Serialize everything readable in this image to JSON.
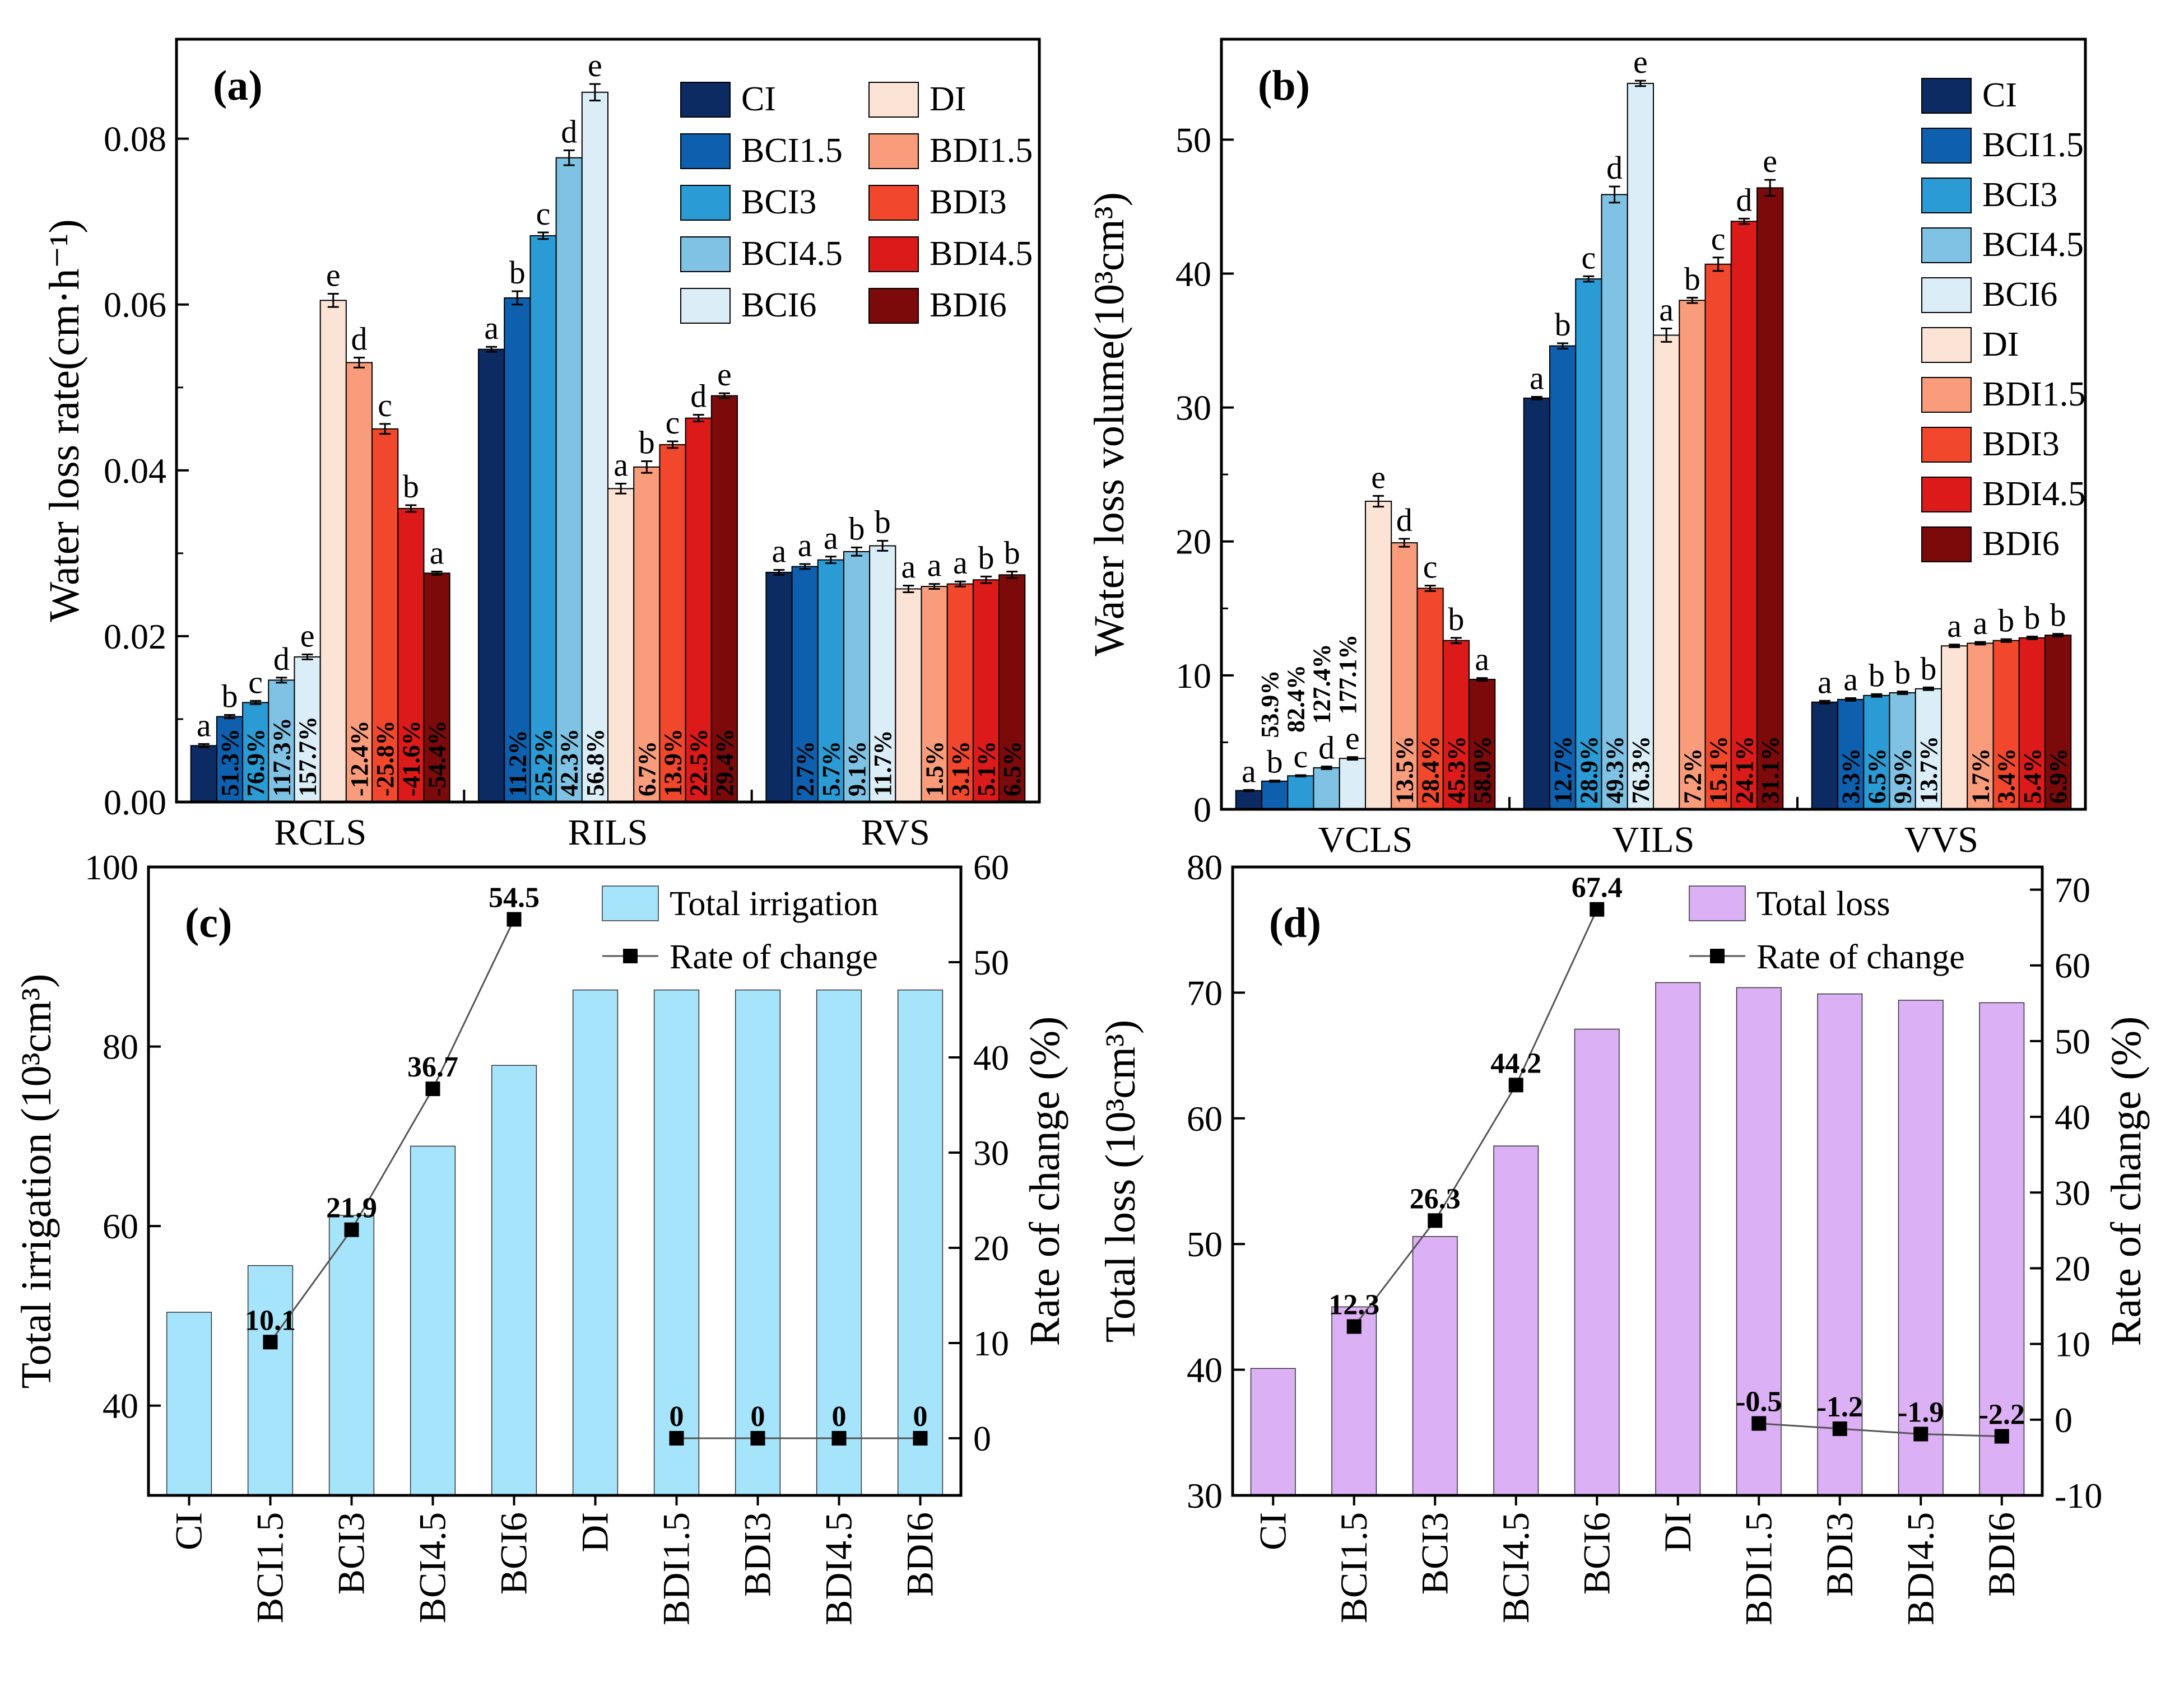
{
  "colors": {
    "CI": "#0d2b63",
    "BCI1.5": "#0e5fad",
    "BCI3": "#2a9bd4",
    "BCI4.5": "#7fc2e3",
    "BCI6": "#dbeef8",
    "DI": "#fbe3d6",
    "BDI1.5": "#f89c7c",
    "BDI3": "#f0472d",
    "BDI4.5": "#dc1a1a",
    "BDI6": "#7c0a0a",
    "irrigation_bar": "#a6e4fb",
    "loss_bar": "#dcb0f5",
    "line": "#555555",
    "marker": "#000000"
  },
  "chart_data": [
    {
      "id": "a",
      "panel_label": "(a)",
      "type": "bar",
      "ylabel": "Water loss rate(cm·h⁻¹)",
      "ylim": [
        0,
        0.092
      ],
      "yticks": [
        "0.00",
        "0.02",
        "0.04",
        "0.06",
        "0.08"
      ],
      "ytick_values": [
        0,
        0.02,
        0.04,
        0.06,
        0.08
      ],
      "treatments": [
        "CI",
        "BCI1.5",
        "BCI3",
        "BCI4.5",
        "BCI6",
        "DI",
        "BDI1.5",
        "BDI3",
        "BDI4.5",
        "BDI6"
      ],
      "legend": {
        "columns": [
          [
            "CI",
            "BCI1.5",
            "BCI3",
            "BCI4.5",
            "BCI6"
          ],
          [
            "DI",
            "BDI1.5",
            "BDI3",
            "BDI4.5",
            "BDI6"
          ]
        ]
      },
      "groups": [
        {
          "name": "RCLS",
          "values": [
            0.0068,
            0.0103,
            0.012,
            0.0147,
            0.0175,
            0.0605,
            0.053,
            0.045,
            0.0354,
            0.0276
          ],
          "errors": [
            0.0002,
            0.0002,
            0.0002,
            0.0003,
            0.0003,
            0.0008,
            0.0006,
            0.0006,
            0.0004,
            0.0002
          ],
          "letters": [
            "a",
            "b",
            "c",
            "d",
            "e",
            "e",
            "d",
            "c",
            "b",
            "a"
          ],
          "pcts": [
            "",
            "51.3%",
            "76.9%",
            "117.3%",
            "157.7%",
            "",
            "-12.4%",
            "-25.8%",
            "-41.6%",
            "-54.4%"
          ]
        },
        {
          "name": "RILS",
          "values": [
            0.0546,
            0.0608,
            0.0683,
            0.0777,
            0.0856,
            0.0378,
            0.0404,
            0.0431,
            0.0463,
            0.049
          ],
          "errors": [
            0.0003,
            0.0008,
            0.0004,
            0.0009,
            0.001,
            0.0006,
            0.0007,
            0.0004,
            0.0004,
            0.0003
          ],
          "letters": [
            "a",
            "b",
            "c",
            "d",
            "e",
            "a",
            "b",
            "c",
            "d",
            "e"
          ],
          "pcts": [
            "",
            "11.2%",
            "25.2%",
            "42.3%",
            "56.8%",
            "",
            "6.7%",
            "13.9%",
            "22.5%",
            "29.4%"
          ]
        },
        {
          "name": "RVS",
          "values": [
            0.0277,
            0.0284,
            0.0292,
            0.0302,
            0.0309,
            0.0257,
            0.026,
            0.0263,
            0.0268,
            0.0274
          ],
          "errors": [
            0.0003,
            0.0003,
            0.0004,
            0.0005,
            0.0006,
            0.0004,
            0.0003,
            0.0003,
            0.0004,
            0.0004
          ],
          "letters": [
            "a",
            "a",
            "a",
            "b",
            "b",
            "a",
            "a",
            "a",
            "b",
            "b"
          ],
          "pcts": [
            "",
            "2.7%",
            "5.7%",
            "9.1%",
            "11.7%",
            "",
            "1.5%",
            "3.1%",
            "5.1%",
            "6.5%"
          ]
        }
      ]
    },
    {
      "id": "b",
      "panel_label": "(b)",
      "type": "bar",
      "ylabel": "Water loss volume(10³cm³)",
      "ylim": [
        0,
        57.5
      ],
      "yticks": [
        "0",
        "10",
        "20",
        "30",
        "40",
        "50"
      ],
      "ytick_values": [
        0,
        10,
        20,
        30,
        40,
        50
      ],
      "treatments": [
        "CI",
        "BCI1.5",
        "BCI3",
        "BCI4.5",
        "BCI6",
        "DI",
        "BDI1.5",
        "BDI3",
        "BDI4.5",
        "BDI6"
      ],
      "legend": {
        "columns": [
          [
            "CI",
            "BCI1.5",
            "BCI3",
            "BCI4.5",
            "BCI6",
            "DI",
            "BDI1.5",
            "BDI3",
            "BDI4.5",
            "BDI6"
          ]
        ]
      },
      "groups": [
        {
          "name": "VCLS",
          "values": [
            1.4,
            2.1,
            2.5,
            3.1,
            3.8,
            23.0,
            19.9,
            16.5,
            12.6,
            9.7
          ],
          "errors": [
            0.05,
            0.05,
            0.05,
            0.1,
            0.1,
            0.4,
            0.3,
            0.2,
            0.2,
            0.1
          ],
          "letters": [
            "a",
            "b",
            "c",
            "d",
            "e",
            "e",
            "d",
            "c",
            "b",
            "a"
          ],
          "above_pcts": [
            "",
            "53.9%",
            "82.4%",
            "127.4%",
            "177.1%",
            "",
            "",
            "",
            "",
            ""
          ],
          "pcts": [
            "",
            "",
            "",
            "",
            "",
            "",
            "13.5%",
            "28.4%",
            "45.3%",
            "58.0%"
          ]
        },
        {
          "name": "VILS",
          "values": [
            30.7,
            34.6,
            39.6,
            45.9,
            54.2,
            35.4,
            38.0,
            40.7,
            43.9,
            46.4
          ],
          "errors": [
            0.1,
            0.2,
            0.2,
            0.6,
            0.2,
            0.5,
            0.2,
            0.5,
            0.2,
            0.6
          ],
          "letters": [
            "a",
            "b",
            "c",
            "d",
            "e",
            "a",
            "b",
            "c",
            "d",
            "e"
          ],
          "pcts": [
            "",
            "12.7%",
            "28.9%",
            "49.3%",
            "76.3%",
            "",
            "7.2%",
            "15.1%",
            "24.1%",
            "31.1%"
          ]
        },
        {
          "name": "VVS",
          "values": [
            8.0,
            8.2,
            8.5,
            8.7,
            9.0,
            12.2,
            12.4,
            12.6,
            12.8,
            13.0
          ],
          "errors": [
            0.1,
            0.1,
            0.1,
            0.1,
            0.1,
            0.1,
            0.1,
            0.1,
            0.1,
            0.1
          ],
          "letters": [
            "a",
            "a",
            "b",
            "b",
            "b",
            "a",
            "a",
            "b",
            "b",
            "b"
          ],
          "pcts": [
            "",
            "3.3%",
            "6.5%",
            "9.9%",
            "13.7%",
            "",
            "1.7%",
            "3.4%",
            "5.4%",
            "6.9%"
          ]
        }
      ]
    },
    {
      "id": "c",
      "panel_label": "(c)",
      "type": "bar+line",
      "categories": [
        "CI",
        "BCI1.5",
        "BCI3",
        "BCI4.5",
        "BCI6",
        "DI",
        "BDI1.5",
        "BDI3",
        "BDI4.5",
        "BDI6"
      ],
      "values": [
        50.4,
        55.6,
        61.2,
        68.9,
        77.9,
        86.3,
        86.3,
        86.3,
        86.3,
        86.3
      ],
      "ylabel": "Total irrigation (10³cm³)",
      "ylim": [
        30,
        100
      ],
      "yticks": [
        "40",
        "60",
        "80",
        "100"
      ],
      "ytick_values": [
        40,
        60,
        80,
        100
      ],
      "y2label": "Rate of change (%)",
      "y2lim": [
        -6,
        60
      ],
      "y2ticks": [
        "0",
        "10",
        "20",
        "30",
        "40",
        "50",
        "60"
      ],
      "y2tick_values": [
        0,
        10,
        20,
        30,
        40,
        50,
        60
      ],
      "legend": {
        "bar": "Total irrigation",
        "line": "Rate of change"
      },
      "line_segments": [
        {
          "indices": [
            1,
            2,
            3,
            4
          ],
          "values": [
            10.1,
            21.9,
            36.7,
            54.5
          ],
          "labels": [
            "10.1",
            "21.9",
            "36.7",
            "54.5"
          ]
        },
        {
          "indices": [
            6,
            7,
            8,
            9
          ],
          "values": [
            0,
            0,
            0,
            0
          ],
          "labels": [
            "0",
            "0",
            "0",
            "0"
          ]
        }
      ]
    },
    {
      "id": "d",
      "panel_label": "(d)",
      "type": "bar+line",
      "categories": [
        "CI",
        "BCI1.5",
        "BCI3",
        "BCI4.5",
        "BCI6",
        "DI",
        "BDI1.5",
        "BDI3",
        "BDI4.5",
        "BDI6"
      ],
      "values": [
        40.1,
        45.0,
        50.6,
        57.8,
        67.1,
        70.8,
        70.4,
        69.9,
        69.4,
        69.2
      ],
      "ylabel": "Total loss (10³cm³)",
      "ylim": [
        30,
        80
      ],
      "yticks": [
        "30",
        "40",
        "50",
        "60",
        "70",
        "80"
      ],
      "ytick_values": [
        30,
        40,
        50,
        60,
        70,
        80
      ],
      "y2label": "Rate of change (%)",
      "y2lim": [
        -10,
        73
      ],
      "y2ticks": [
        "-10",
        "0",
        "10",
        "20",
        "30",
        "40",
        "50",
        "60",
        "70"
      ],
      "y2tick_values": [
        -10,
        0,
        10,
        20,
        30,
        40,
        50,
        60,
        70
      ],
      "legend": {
        "bar": "Total loss",
        "line": "Rate of change"
      },
      "line_segments": [
        {
          "indices": [
            1,
            2,
            3,
            4
          ],
          "values": [
            12.3,
            26.3,
            44.2,
            67.4
          ],
          "labels": [
            "12.3",
            "26.3",
            "44.2",
            "67.4"
          ]
        },
        {
          "indices": [
            6,
            7,
            8,
            9
          ],
          "values": [
            -0.5,
            -1.2,
            -1.9,
            -2.2
          ],
          "labels": [
            "-0.5",
            "-1.2",
            "-1.9",
            "-2.2"
          ]
        }
      ]
    }
  ]
}
